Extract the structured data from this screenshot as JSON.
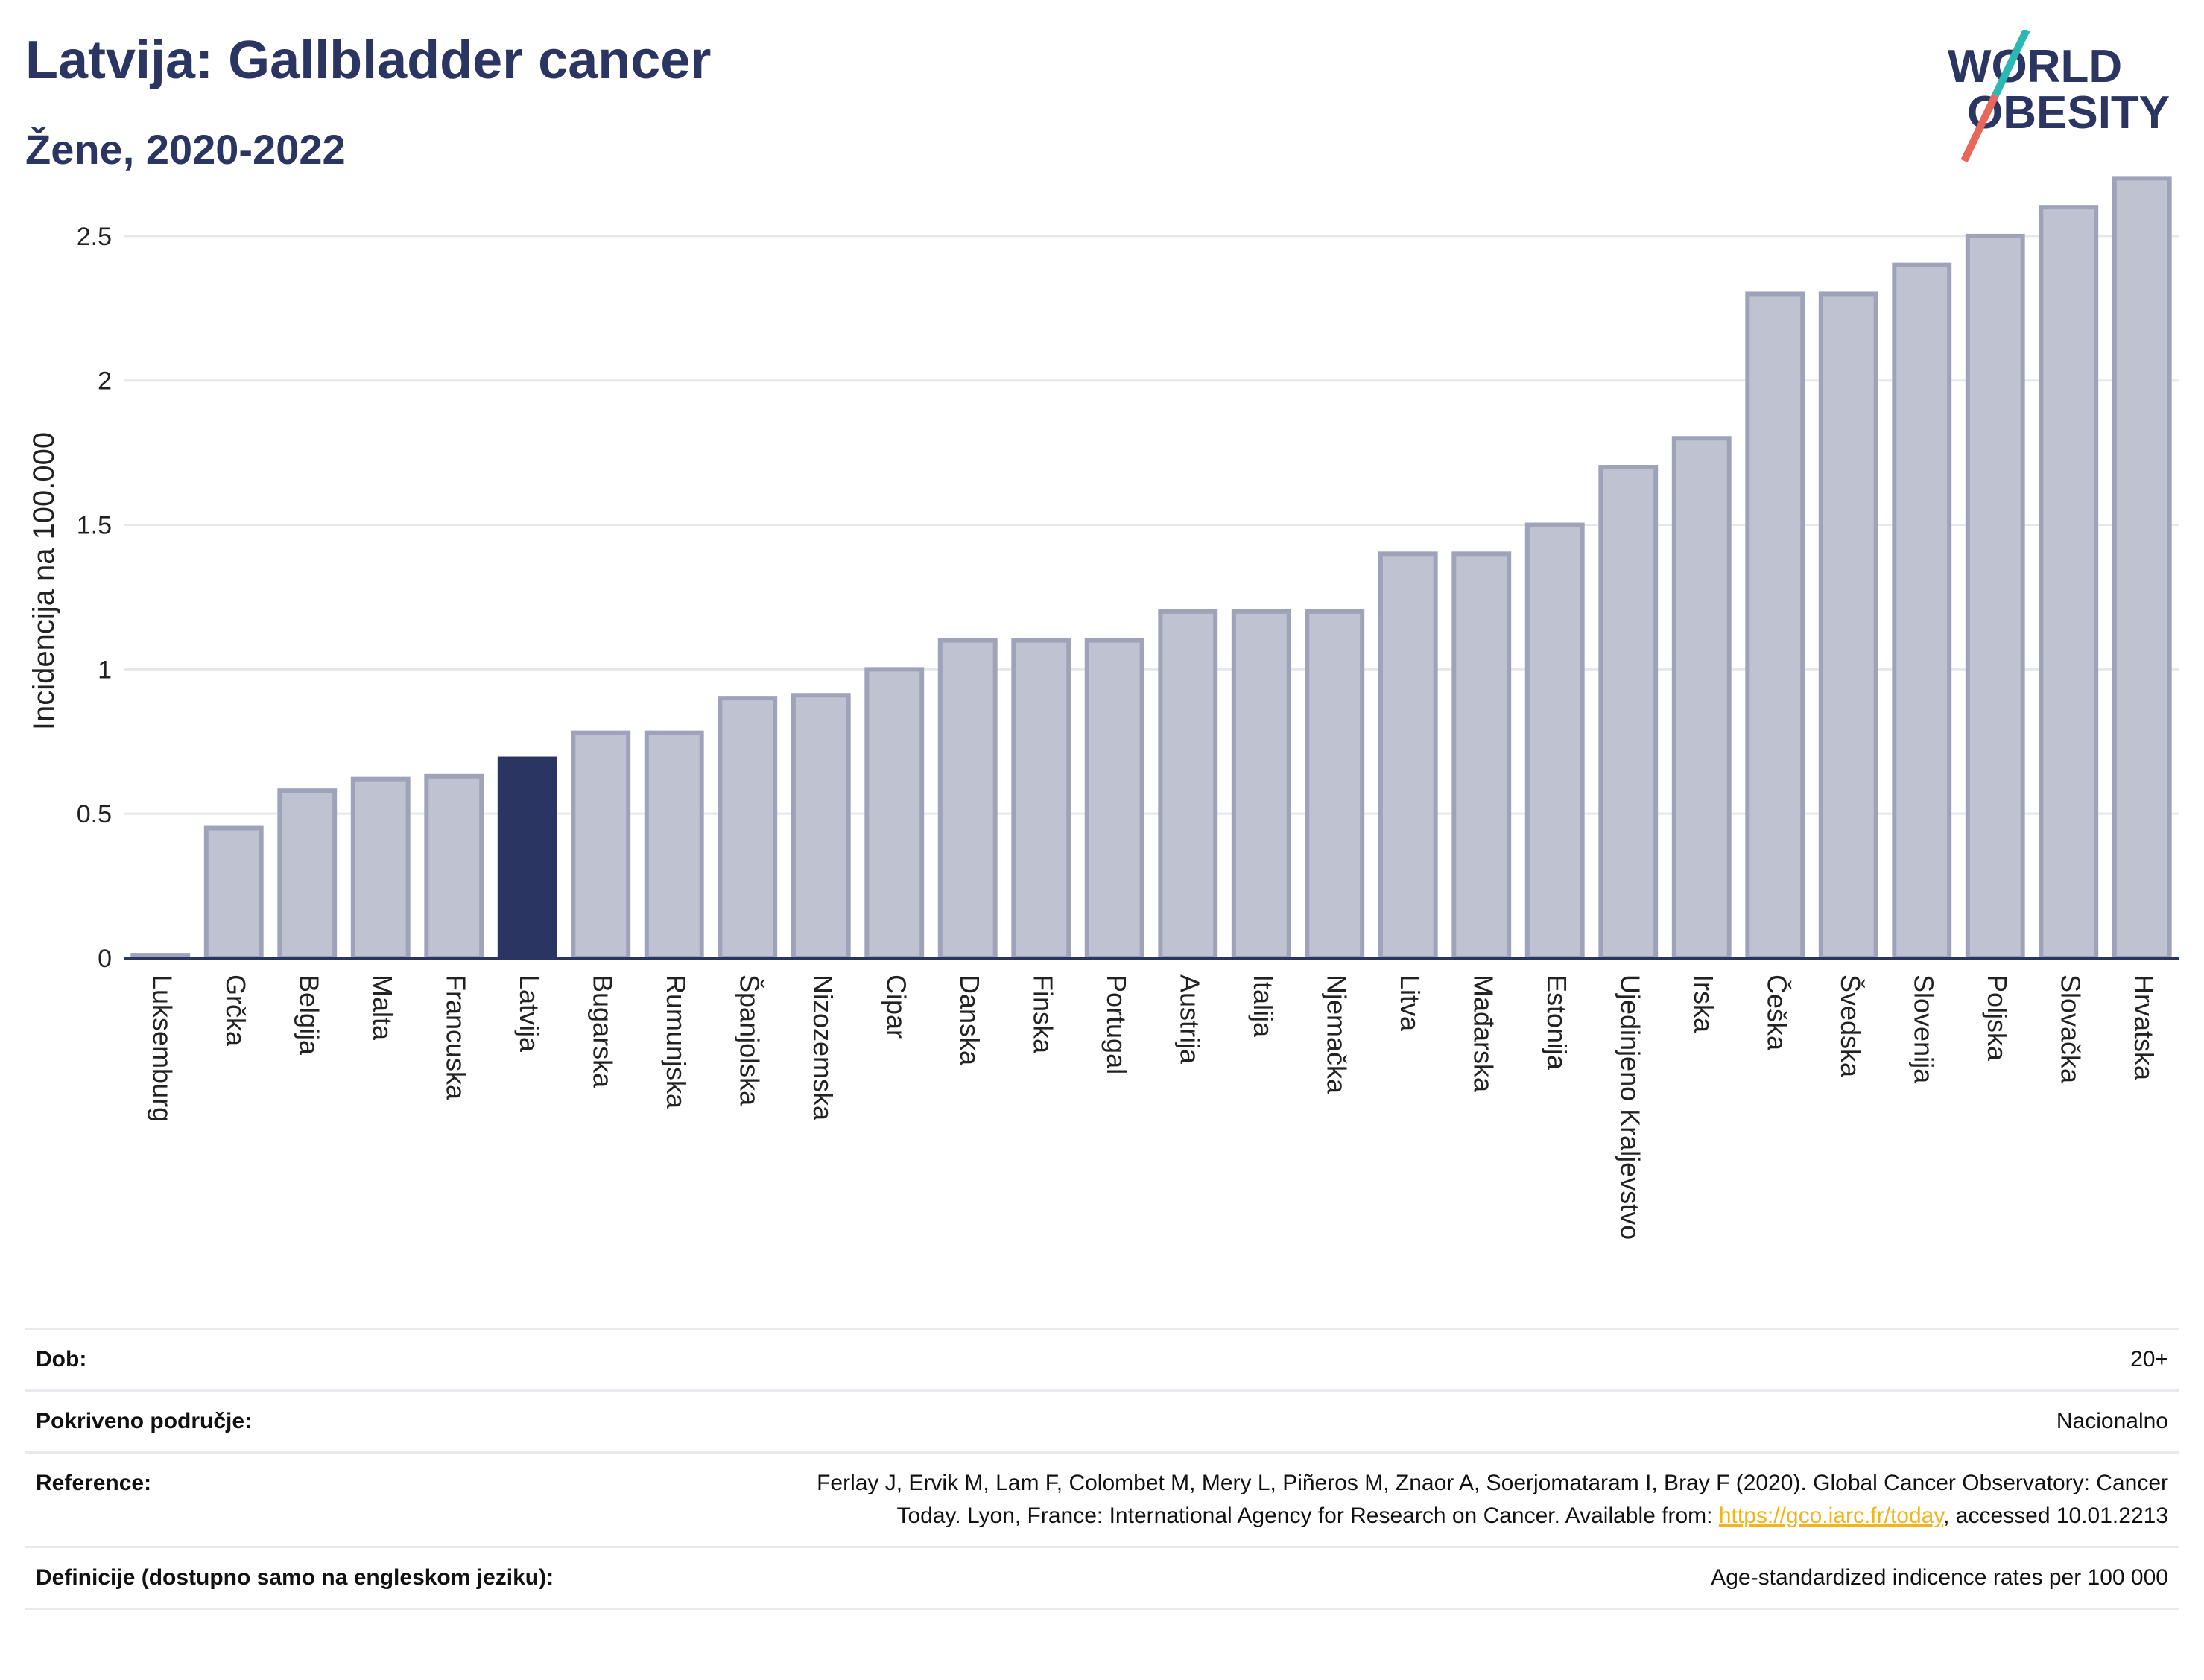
{
  "header": {
    "title": "Latvija: Gallbladder cancer",
    "subtitle": "Žene, 2020-2022",
    "logo_line1": "WORLD",
    "logo_line2": "OBESITY"
  },
  "colors": {
    "highlight_bar": "#2b3561",
    "default_bar_fill": "#bfc2d0",
    "default_bar_stroke": "#9ea3b9",
    "title": "#2b3561",
    "logo_teal": "#2bb7b3",
    "logo_red": "#e8675a"
  },
  "chart_data": {
    "type": "bar",
    "title": "",
    "xlabel": "",
    "ylabel": "Incidencija na 100.000",
    "ylim": [
      0,
      2.75
    ],
    "yticks": [
      0,
      0.5,
      1,
      1.5,
      2,
      2.5
    ],
    "ytick_labels": [
      "0",
      "0.5",
      "1",
      "1.5",
      "2",
      "2.5"
    ],
    "grid": true,
    "highlight": "Latvija",
    "categories": [
      "Luksemburg",
      "Grčka",
      "Belgija",
      "Malta",
      "Francuska",
      "Latvija",
      "Bugarska",
      "Rumunjska",
      "Španjolska",
      "Nizozemska",
      "Cipar",
      "Danska",
      "Finska",
      "Portugal",
      "Austrija",
      "Italija",
      "Njemačka",
      "Litva",
      "Mađarska",
      "Estonija",
      "Ujedinjeno Kraljevstvo",
      "Irska",
      "Češka",
      "Švedska",
      "Slovenija",
      "Poljska",
      "Slovačka",
      "Hrvatska"
    ],
    "values": [
      0.01,
      0.45,
      0.58,
      0.62,
      0.63,
      0.69,
      0.78,
      0.78,
      0.9,
      0.91,
      1.0,
      1.1,
      1.1,
      1.1,
      1.2,
      1.2,
      1.2,
      1.4,
      1.4,
      1.5,
      1.7,
      1.8,
      2.3,
      2.3,
      2.4,
      2.5,
      2.6,
      2.7
    ]
  },
  "info": {
    "age_label": "Dob:",
    "age_value": "20+",
    "coverage_label": "Pokriveno područje:",
    "coverage_value": "Nacionalno",
    "reference_label": "Reference:",
    "reference_text1": "Ferlay J, Ervik M, Lam F, Colombet M, Mery L, Piñeros M, Znaor A, Soerjomataram I, Bray F (2020). Global Cancer Observatory: Cancer",
    "reference_text2": "Today. Lyon, France: International Agency for Research on Cancer. Available from: ",
    "reference_link": "https://gco.iarc.fr/today",
    "reference_text3": ", accessed 10.01.2213",
    "definition_label": "Definicije (dostupno samo na engleskom jeziku):",
    "definition_value": "Age-standardized indicence rates per 100 000"
  }
}
